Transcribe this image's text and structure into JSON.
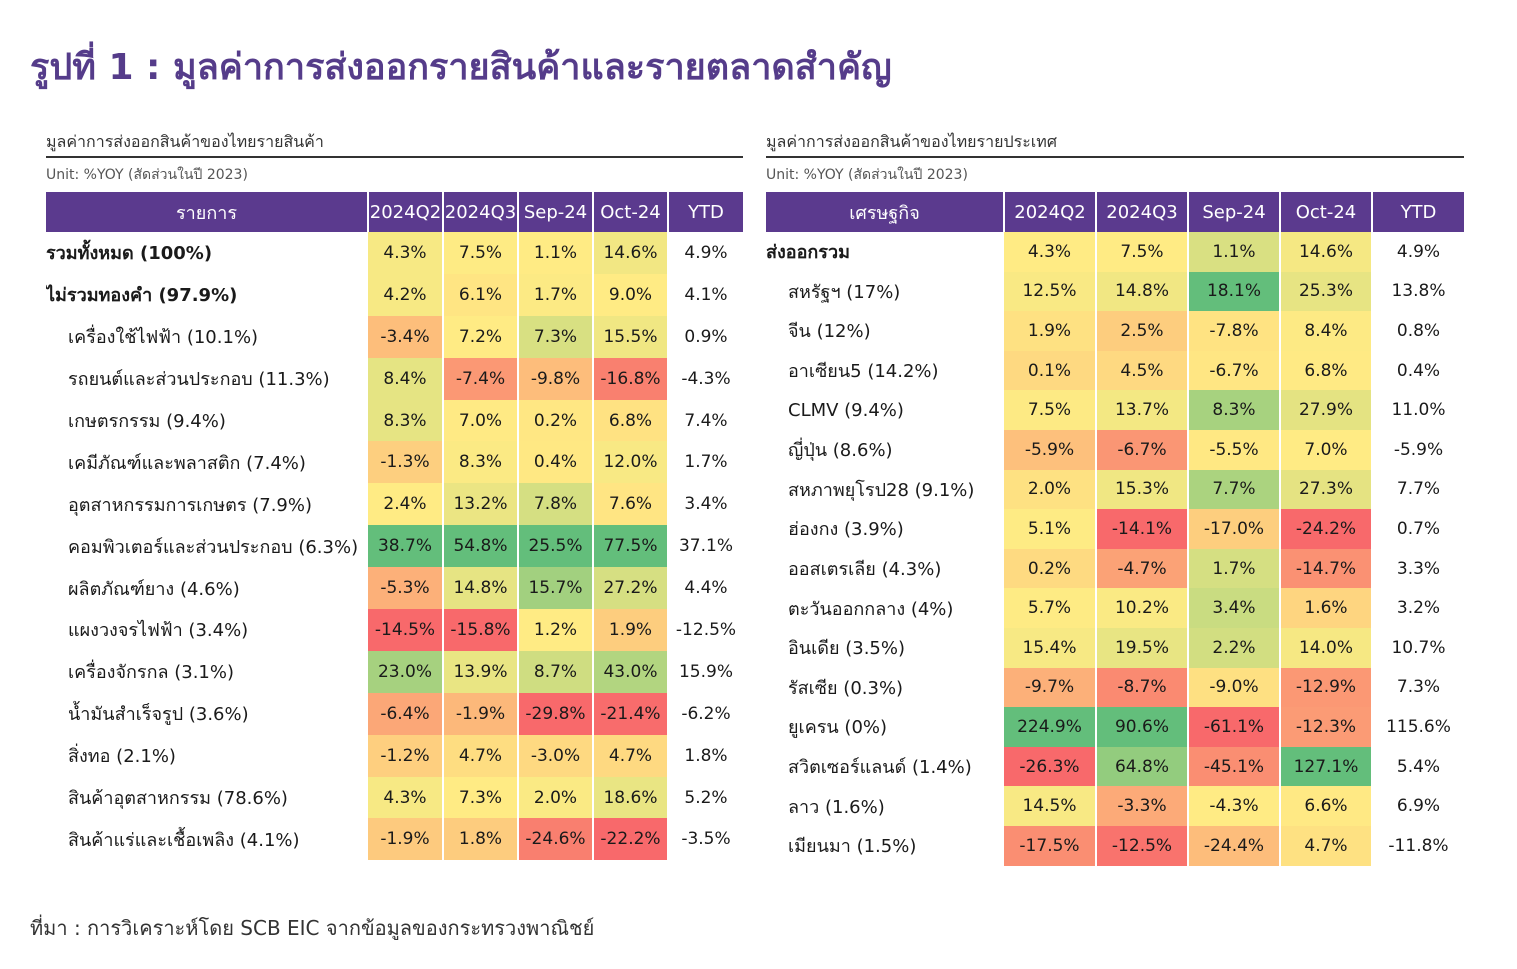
{
  "title": "รูปที่ 1 : มูลค่าการส่งออกรายสินค้าและรายตลาดสำคัญ",
  "source": "ที่มา : การวิเคราะห์โดย SCB EIC จากข้อมูลของกระทรวงพาณิชย์",
  "colors": {
    "header_bg": "#5b3a8e",
    "title": "#553c8a",
    "scale_low": "#f8696b",
    "scale_mid": "#ffeb84",
    "scale_high": "#63be7b"
  },
  "chart_data": [
    {
      "type": "table",
      "title": "มูลค่าการส่งออกสินค้าของไทยรายสินค้า",
      "unit": "Unit: %YOY (สัดส่วนในปี 2023)",
      "columns": [
        "รายการ",
        "2024Q2",
        "2024Q3",
        "Sep-24",
        "Oct-24",
        "YTD"
      ],
      "rows": [
        {
          "label": "รวมทั้งหมด (100%)",
          "bold": true,
          "indent": false,
          "values": [
            "4.3%",
            "7.5%",
            "1.1%",
            "14.6%",
            "4.9%"
          ]
        },
        {
          "label": "ไม่รวมทองคำ (97.9%)",
          "bold": true,
          "indent": false,
          "values": [
            "4.2%",
            "6.1%",
            "1.7%",
            "9.0%",
            "4.1%"
          ]
        },
        {
          "label": "เครื่องใช้ไฟฟ้า (10.1%)",
          "bold": false,
          "indent": true,
          "values": [
            "-3.4%",
            "7.2%",
            "7.3%",
            "15.5%",
            "0.9%"
          ]
        },
        {
          "label": "รถยนต์และส่วนประกอบ (11.3%)",
          "bold": false,
          "indent": true,
          "values": [
            "8.4%",
            "-7.4%",
            "-9.8%",
            "-16.8%",
            "-4.3%"
          ]
        },
        {
          "label": "เกษตรกรรม (9.4%)",
          "bold": false,
          "indent": true,
          "values": [
            "8.3%",
            "7.0%",
            "0.2%",
            "6.8%",
            "7.4%"
          ]
        },
        {
          "label": "เคมีภัณฑ์และพลาสติก (7.4%)",
          "bold": false,
          "indent": true,
          "values": [
            "-1.3%",
            "8.3%",
            "0.4%",
            "12.0%",
            "1.7%"
          ]
        },
        {
          "label": "อุตสาหกรรมการเกษตร (7.9%)",
          "bold": false,
          "indent": true,
          "values": [
            "2.4%",
            "13.2%",
            "7.8%",
            "7.6%",
            "3.4%"
          ]
        },
        {
          "label": "คอมพิวเตอร์และส่วนประกอบ (6.3%)",
          "bold": false,
          "indent": true,
          "values": [
            "38.7%",
            "54.8%",
            "25.5%",
            "77.5%",
            "37.1%"
          ]
        },
        {
          "label": "ผลิตภัณฑ์ยาง (4.6%)",
          "bold": false,
          "indent": true,
          "values": [
            "-5.3%",
            "14.8%",
            "15.7%",
            "27.2%",
            "4.4%"
          ]
        },
        {
          "label": "แผงวงจรไฟฟ้า (3.4%)",
          "bold": false,
          "indent": true,
          "values": [
            "-14.5%",
            "-15.8%",
            "1.2%",
            "1.9%",
            "-12.5%"
          ]
        },
        {
          "label": "เครื่องจักรกล (3.1%)",
          "bold": false,
          "indent": true,
          "values": [
            "23.0%",
            "13.9%",
            "8.7%",
            "43.0%",
            "15.9%"
          ]
        },
        {
          "label": "น้ำมันสำเร็จรูป (3.6%)",
          "bold": false,
          "indent": true,
          "values": [
            "-6.4%",
            "-1.9%",
            "-29.8%",
            "-21.4%",
            "-6.2%"
          ]
        },
        {
          "label": "สิ่งทอ (2.1%)",
          "bold": false,
          "indent": true,
          "values": [
            "-1.2%",
            "4.7%",
            "-3.0%",
            "4.7%",
            "1.8%"
          ]
        },
        {
          "label": "สินค้าอุตสาหกรรม (78.6%)",
          "bold": false,
          "indent": true,
          "values": [
            "4.3%",
            "7.3%",
            "2.0%",
            "18.6%",
            "5.2%"
          ]
        },
        {
          "label": "สินค้าแร่และเชื้อเพลิง (4.1%)",
          "bold": false,
          "indent": true,
          "values": [
            "-1.9%",
            "1.8%",
            "-24.6%",
            "-22.2%",
            "-3.5%"
          ]
        }
      ]
    },
    {
      "type": "table",
      "title": "มูลค่าการส่งออกสินค้าของไทยรายประเทศ",
      "unit": "Unit: %YOY (สัดส่วนในปี 2023)",
      "columns": [
        "เศรษฐกิจ",
        "2024Q2",
        "2024Q3",
        "Sep-24",
        "Oct-24",
        "YTD"
      ],
      "rows": [
        {
          "label": "ส่งออกรวม",
          "bold": true,
          "indent": false,
          "values": [
            "4.3%",
            "7.5%",
            "1.1%",
            "14.6%",
            "4.9%"
          ]
        },
        {
          "label": "สหรัฐฯ (17%)",
          "bold": false,
          "indent": true,
          "values": [
            "12.5%",
            "14.8%",
            "18.1%",
            "25.3%",
            "13.8%"
          ]
        },
        {
          "label": "จีน (12%)",
          "bold": false,
          "indent": true,
          "values": [
            "1.9%",
            "2.5%",
            "-7.8%",
            "8.4%",
            "0.8%"
          ]
        },
        {
          "label": "อาเซียน5 (14.2%)",
          "bold": false,
          "indent": true,
          "values": [
            "0.1%",
            "4.5%",
            "-6.7%",
            "6.8%",
            "0.4%"
          ]
        },
        {
          "label": "CLMV (9.4%)",
          "bold": false,
          "indent": true,
          "values": [
            "7.5%",
            "13.7%",
            "8.3%",
            "27.9%",
            "11.0%"
          ]
        },
        {
          "label": "ญี่ปุ่น (8.6%)",
          "bold": false,
          "indent": true,
          "values": [
            "-5.9%",
            "-6.7%",
            "-5.5%",
            "7.0%",
            "-5.9%"
          ]
        },
        {
          "label": "สหภาพยุโรป28 (9.1%)",
          "bold": false,
          "indent": true,
          "values": [
            "2.0%",
            "15.3%",
            "7.7%",
            "27.3%",
            "7.7%"
          ]
        },
        {
          "label": "ฮ่องกง (3.9%)",
          "bold": false,
          "indent": true,
          "values": [
            "5.1%",
            "-14.1%",
            "-17.0%",
            "-24.2%",
            "0.7%"
          ]
        },
        {
          "label": "ออสเตรเลีย (4.3%)",
          "bold": false,
          "indent": true,
          "values": [
            "0.2%",
            "-4.7%",
            "1.7%",
            "-14.7%",
            "3.3%"
          ]
        },
        {
          "label": "ตะวันออกกลาง (4%)",
          "bold": false,
          "indent": true,
          "values": [
            "5.7%",
            "10.2%",
            "3.4%",
            "1.6%",
            "3.2%"
          ]
        },
        {
          "label": "อินเดีย (3.5%)",
          "bold": false,
          "indent": true,
          "values": [
            "15.4%",
            "19.5%",
            "2.2%",
            "14.0%",
            "10.7%"
          ]
        },
        {
          "label": "รัสเซีย (0.3%)",
          "bold": false,
          "indent": true,
          "values": [
            "-9.7%",
            "-8.7%",
            "-9.0%",
            "-12.9%",
            "7.3%"
          ]
        },
        {
          "label": "ยูเครน (0%)",
          "bold": false,
          "indent": true,
          "values": [
            "224.9%",
            "90.6%",
            "-61.1%",
            "-12.3%",
            "115.6%"
          ]
        },
        {
          "label": "สวิตเซอร์แลนด์ (1.4%)",
          "bold": false,
          "indent": true,
          "values": [
            "-26.3%",
            "64.8%",
            "-45.1%",
            "127.1%",
            "5.4%"
          ]
        },
        {
          "label": "ลาว (1.6%)",
          "bold": false,
          "indent": true,
          "values": [
            "14.5%",
            "-3.3%",
            "-4.3%",
            "6.6%",
            "6.9%"
          ]
        },
        {
          "label": "เมียนมา (1.5%)",
          "bold": false,
          "indent": true,
          "values": [
            "-17.5%",
            "-12.5%",
            "-24.4%",
            "4.7%",
            "-11.8%"
          ]
        }
      ]
    }
  ]
}
